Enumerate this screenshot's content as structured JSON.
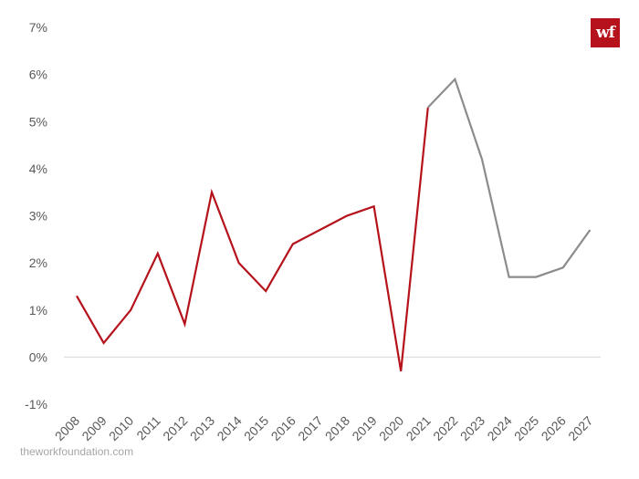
{
  "logo_text": "wf",
  "source": "theworkfoundation.com",
  "colors": {
    "actual": "#b5121b",
    "forecast": "#8c8c8c",
    "zero_line": "#d9d9d9",
    "tick_text": "#595959"
  },
  "chart_data": {
    "type": "line",
    "title": "",
    "xlabel": "",
    "ylabel": "",
    "x": [
      "2008",
      "2009",
      "2010",
      "2011",
      "2012",
      "2013",
      "2014",
      "2015",
      "2016",
      "2017",
      "2018",
      "2019",
      "2020",
      "2021",
      "2022",
      "2023",
      "2024",
      "2025",
      "2026",
      "2027"
    ],
    "ylim": [
      -1,
      7
    ],
    "y_ticks": [
      -1,
      0,
      1,
      2,
      3,
      4,
      5,
      6,
      7
    ],
    "y_tick_labels": [
      "-1%",
      "0%",
      "1%",
      "2%",
      "3%",
      "4%",
      "5%",
      "6%",
      "7%"
    ],
    "grid": false,
    "series": [
      {
        "values": [
          1.3,
          0.3,
          1.0,
          2.2,
          0.7,
          3.5,
          2.0,
          1.4,
          2.4,
          2.7,
          3.0,
          3.2,
          -0.3,
          5.3,
          null,
          null,
          null,
          null,
          null,
          null
        ]
      },
      {
        "values": [
          null,
          null,
          null,
          null,
          null,
          null,
          null,
          null,
          null,
          null,
          null,
          null,
          null,
          5.3,
          5.9,
          4.2,
          1.7,
          1.7,
          1.9,
          2.7
        ]
      }
    ]
  }
}
